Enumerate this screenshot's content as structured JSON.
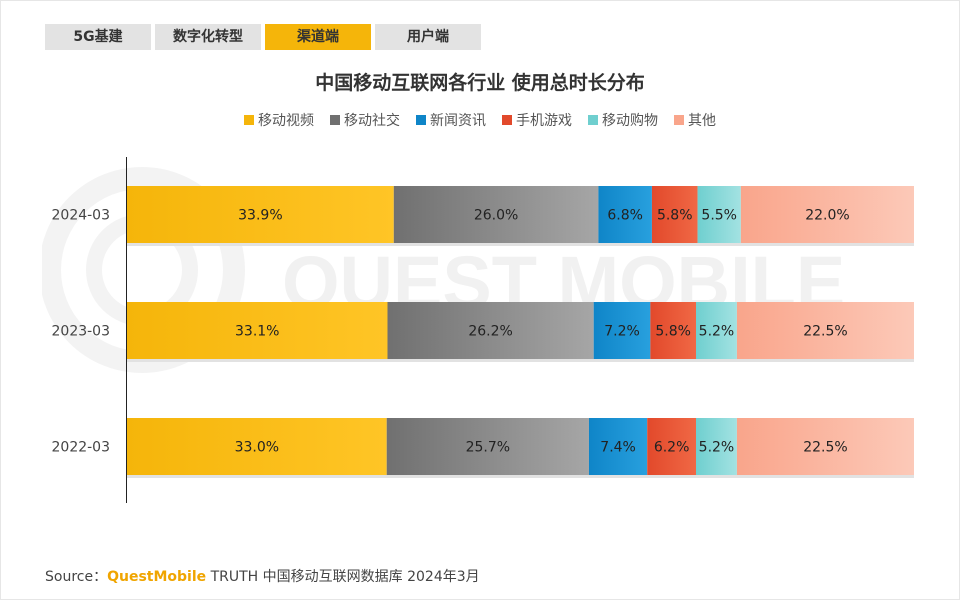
{
  "tabs": [
    {
      "label": "5G基建",
      "active": false
    },
    {
      "label": "数字化转型",
      "active": false
    },
    {
      "label": "渠道端",
      "active": true
    },
    {
      "label": "用户端",
      "active": false
    }
  ],
  "watermark": "QUEST MOBILE",
  "source": {
    "prefix": "Source：",
    "brand": "QuestMobile",
    "rest": " TRUTH 中国移动互联网数据库 2024年3月"
  },
  "chart_data": {
    "type": "bar",
    "orientation": "horizontal",
    "stacked": true,
    "percent": true,
    "title": "中国移动互联网各行业 使用总时长分布",
    "categories": [
      "2024-03",
      "2023-03",
      "2022-03"
    ],
    "legend_position": "top",
    "grid": false,
    "xlim": [
      0,
      100
    ],
    "series": [
      {
        "name": "移动视频",
        "color": "#f5b50a",
        "color_end": "#ffc526",
        "values": [
          33.9,
          33.1,
          33.0
        ],
        "labels": [
          "33.9%",
          "33.1%",
          "33.0%"
        ]
      },
      {
        "name": "移动社交",
        "color": "#707070",
        "color_end": "#a6a6a6",
        "values": [
          26.0,
          26.2,
          25.7
        ],
        "labels": [
          "26.0%",
          "26.2%",
          "25.7%"
        ]
      },
      {
        "name": "新闻资讯",
        "color": "#0f85c8",
        "color_end": "#28a0de",
        "values": [
          6.8,
          7.2,
          7.4
        ],
        "labels": [
          "6.8%",
          "7.2%",
          "7.4%"
        ]
      },
      {
        "name": "手机游戏",
        "color": "#e2492b",
        "color_end": "#f06845",
        "values": [
          5.8,
          5.8,
          6.2
        ],
        "labels": [
          "5.8%",
          "5.8%",
          "6.2%"
        ]
      },
      {
        "name": "移动购物",
        "color": "#6fcfcf",
        "color_end": "#a3e2e2",
        "values": [
          5.5,
          5.2,
          5.2
        ],
        "labels": [
          "5.5%",
          "5.2%",
          "5.2%"
        ]
      },
      {
        "name": "其他",
        "color": "#f9a58b",
        "color_end": "#fcc9b8",
        "values": [
          22.0,
          22.5,
          22.5
        ],
        "labels": [
          "22.0%",
          "22.5%",
          "22.5%"
        ]
      }
    ]
  }
}
